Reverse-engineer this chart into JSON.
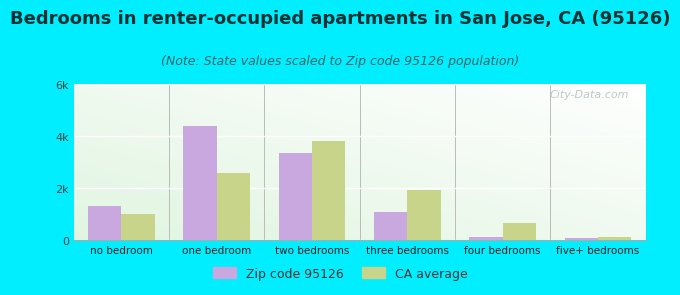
{
  "title": "Bedrooms in renter-occupied apartments in San Jose, CA (95126)",
  "subtitle": "(Note: State values scaled to Zip code 95126 population)",
  "categories": [
    "no bedroom",
    "one bedroom",
    "two bedrooms",
    "three bedrooms",
    "four bedrooms",
    "five+ bedrooms"
  ],
  "zip_values": [
    1300,
    4400,
    3350,
    1100,
    120,
    80
  ],
  "ca_values": [
    1000,
    2600,
    3800,
    1950,
    650,
    120
  ],
  "zip_color": "#c9a8e0",
  "ca_color": "#c8d48a",
  "background_outer": "#00eeff",
  "ylim": [
    0,
    6000
  ],
  "yticks": [
    0,
    2000,
    4000,
    6000
  ],
  "ytick_labels": [
    "0",
    "2k",
    "4k",
    "6k"
  ],
  "bar_width": 0.35,
  "legend_zip_label": "Zip code 95126",
  "legend_ca_label": "CA average",
  "title_fontsize": 13,
  "subtitle_fontsize": 9,
  "watermark": "City-Data.com"
}
